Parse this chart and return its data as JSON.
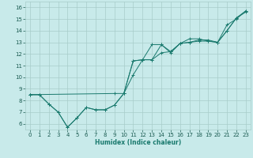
{
  "title": "",
  "xlabel": "Humidex (Indice chaleur)",
  "ylabel": "",
  "bg_color": "#c8eaea",
  "grid_color": "#a8ccca",
  "line_color": "#1a7a6e",
  "xlim": [
    -0.5,
    23.5
  ],
  "ylim": [
    5.5,
    16.5
  ],
  "xticks": [
    0,
    1,
    2,
    3,
    4,
    5,
    6,
    7,
    8,
    9,
    10,
    11,
    12,
    13,
    14,
    15,
    16,
    17,
    18,
    19,
    20,
    21,
    22,
    23
  ],
  "yticks": [
    6,
    7,
    8,
    9,
    10,
    11,
    12,
    13,
    14,
    15,
    16
  ],
  "series": [
    {
      "x": [
        0,
        1,
        2,
        3,
        4,
        5,
        6,
        7,
        8,
        9,
        10,
        11,
        12,
        13,
        14,
        15,
        16,
        17,
        18,
        19,
        20,
        21,
        22,
        23
      ],
      "y": [
        8.5,
        8.5,
        7.7,
        7.0,
        5.7,
        6.5,
        7.4,
        7.2,
        7.2,
        7.6,
        8.6,
        10.2,
        11.5,
        11.5,
        12.8,
        12.1,
        12.9,
        13.0,
        13.1,
        13.1,
        13.0,
        14.0,
        15.1,
        15.6
      ]
    },
    {
      "x": [
        0,
        1,
        2,
        3,
        4,
        5,
        6,
        7,
        8,
        9,
        10,
        11,
        12,
        13,
        14,
        15,
        16,
        17,
        18,
        19,
        20,
        21,
        22,
        23
      ],
      "y": [
        8.5,
        8.5,
        7.7,
        7.0,
        5.7,
        6.5,
        7.4,
        7.2,
        7.2,
        7.6,
        8.6,
        11.4,
        11.5,
        11.5,
        12.1,
        12.2,
        12.9,
        13.0,
        13.2,
        13.2,
        13.0,
        14.0,
        15.1,
        15.7
      ]
    },
    {
      "x": [
        0,
        9,
        10,
        11,
        12,
        13,
        14,
        15,
        16,
        17,
        18,
        19,
        20,
        21,
        22,
        23
      ],
      "y": [
        8.5,
        8.6,
        8.6,
        11.4,
        11.5,
        12.8,
        12.8,
        12.2,
        12.9,
        13.3,
        13.3,
        13.1,
        13.0,
        14.5,
        15.0,
        15.7
      ]
    }
  ]
}
